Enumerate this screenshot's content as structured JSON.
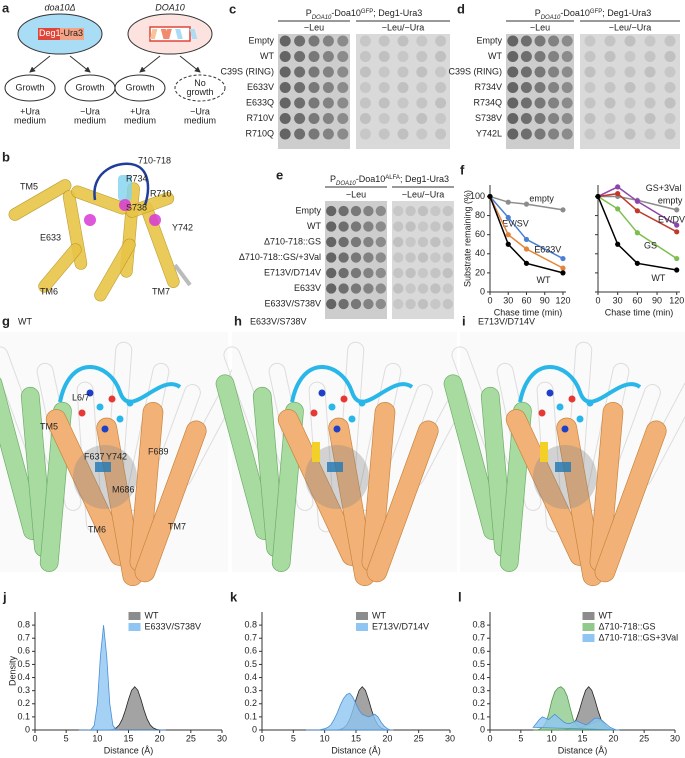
{
  "panels": {
    "a": {
      "label": "a",
      "left_title": "doa10Δ",
      "right_title": "DOA10",
      "construct": [
        "Deg1",
        "-Ura3"
      ],
      "outcomes": [
        [
          "Growth"
        ],
        [
          "Growth"
        ],
        [
          "Growth"
        ],
        [
          "No",
          "growth"
        ]
      ],
      "media": [
        [
          "+Ura",
          "medium"
        ],
        [
          "−Ura",
          "medium"
        ],
        [
          "+Ura",
          "medium"
        ],
        [
          "−Ura",
          "medium"
        ]
      ]
    },
    "b": {
      "label": "b",
      "labels": [
        "710-718",
        "R734",
        "R710",
        "S738",
        "TM5",
        "E633",
        "Y742",
        "TM6",
        "TM7"
      ]
    },
    "c": {
      "label": "c",
      "title": {
        "p": "P",
        "sub": "DOA10",
        "mid": "-Doa10",
        "sup": "GFP",
        "rest": "; Deg1-Ura3"
      },
      "columns": [
        "−Leu",
        "−Leu/−Ura"
      ],
      "rows": [
        "Empty",
        "WT",
        "C39S (RING)",
        "E633V",
        "E633Q",
        "R710V",
        "R710Q"
      ]
    },
    "d": {
      "label": "d",
      "title": {
        "p": "P",
        "sub": "DOA10",
        "mid": "-Doa10",
        "sup": "GFP",
        "rest": "; Deg1-Ura3"
      },
      "columns": [
        "−Leu",
        "−Leu/−Ura"
      ],
      "rows": [
        "Empty",
        "WT",
        "C39S (RING)",
        "R734V",
        "R734Q",
        "S738V",
        "Y742L"
      ]
    },
    "e": {
      "label": "e",
      "title": {
        "p": "P",
        "sub": "DOA10",
        "mid": "-Doa10",
        "sup": "ALFA",
        "rest": "; Deg1-Ura3"
      },
      "columns": [
        "−Leu",
        "−Leu/−Ura"
      ],
      "rows": [
        "Empty",
        "WT",
        "Δ710-718::GS",
        "Δ710-718::GS/+3Val",
        "E713V/D714V",
        "E633V",
        "E633V/S738V"
      ]
    },
    "g": {
      "label": "g",
      "title": "WT",
      "labels": [
        "L6/7",
        "TM5",
        "F637",
        "Y742",
        "F689",
        "M686",
        "TM6",
        "TM7"
      ]
    },
    "h": {
      "label": "h",
      "title": "E633V/S738V"
    },
    "i": {
      "label": "i",
      "title": "E713V/D714V"
    }
  },
  "chart_data": [
    {
      "type": "line",
      "label": "f",
      "x": [
        0,
        30,
        60,
        120
      ],
      "xlim": [
        0,
        125
      ],
      "ylim": [
        0,
        112
      ],
      "xticks": [
        0,
        30,
        60,
        90,
        120
      ],
      "yticks": [
        0,
        20,
        40,
        60,
        80,
        100
      ],
      "xlabel": "Chase time (min)",
      "ylabel": "Substrate remaining (%)",
      "series": [
        {
          "name": "empty",
          "color": "#8c8c8c",
          "values": [
            100,
            94,
            92,
            86
          ]
        },
        {
          "name": "EV/SV",
          "color": "#4a7fd4",
          "values": [
            100,
            78,
            55,
            35
          ]
        },
        {
          "name": "E633V",
          "color": "#e6843a",
          "values": [
            100,
            60,
            45,
            25
          ]
        },
        {
          "name": "WT",
          "color": "#000000",
          "values": [
            100,
            50,
            30,
            20
          ]
        }
      ]
    },
    {
      "type": "line",
      "x": [
        0,
        30,
        60,
        120
      ],
      "xlim": [
        0,
        125
      ],
      "ylim": [
        0,
        112
      ],
      "xticks": [
        0,
        30,
        60,
        90,
        120
      ],
      "yticks": [
        0,
        20,
        40,
        60,
        80,
        100
      ],
      "xlabel": "Chase time (min)",
      "series": [
        {
          "name": "empty",
          "color": "#8c8c8c",
          "values": [
            100,
            100,
            96,
            86
          ]
        },
        {
          "name": "GS+3Val",
          "color": "#8e44ad",
          "values": [
            100,
            110,
            95,
            70
          ]
        },
        {
          "name": "EV/DV",
          "color": "#c0392b",
          "values": [
            100,
            103,
            85,
            63
          ]
        },
        {
          "name": "GS",
          "color": "#7cbf4e",
          "values": [
            100,
            87,
            62,
            35
          ]
        },
        {
          "name": "WT",
          "color": "#000000",
          "values": [
            100,
            50,
            30,
            23
          ]
        }
      ]
    },
    {
      "type": "area",
      "label": "j",
      "x": [
        7,
        7.5,
        8,
        8.5,
        9,
        9.5,
        10,
        10.5,
        11,
        11.5,
        12,
        12.5,
        13,
        13.5,
        14,
        14.5,
        15,
        15.5,
        16,
        16.5,
        17,
        17.5,
        18,
        18.5,
        19,
        19.5,
        20,
        20.5,
        21
      ],
      "xlim": [
        0,
        30
      ],
      "ylim": [
        0,
        0.9
      ],
      "xticks": [
        0,
        5,
        10,
        15,
        20,
        25,
        30
      ],
      "yticks": [
        0,
        0.1,
        0.2,
        0.3,
        0.4,
        0.5,
        0.6,
        0.7,
        0.8
      ],
      "xlabel": "Distance (Å)",
      "ylabel": "Density",
      "series": [
        {
          "name": "WT",
          "color": "#8c8c8c",
          "values": [
            0,
            0,
            0,
            0,
            0,
            0,
            0,
            0,
            0,
            0,
            0.001,
            0.005,
            0.015,
            0.038,
            0.082,
            0.151,
            0.233,
            0.303,
            0.33,
            0.303,
            0.233,
            0.151,
            0.082,
            0.038,
            0.015,
            0.005,
            0.001,
            0,
            0
          ]
        },
        {
          "name": "E633V/S738V",
          "color": "#8ec5f2",
          "values": [
            0,
            0,
            0,
            0,
            0.003,
            0.035,
            0.2,
            0.566,
            0.8,
            0.566,
            0.2,
            0.035,
            0.003,
            0,
            0,
            0,
            0,
            0,
            0,
            0,
            0,
            0,
            0,
            0,
            0,
            0,
            0,
            0,
            0
          ]
        }
      ]
    },
    {
      "type": "area",
      "label": "k",
      "x": [
        7,
        7.5,
        8,
        8.5,
        9,
        9.5,
        10,
        10.5,
        11,
        11.5,
        12,
        12.5,
        13,
        13.5,
        14,
        14.5,
        15,
        15.5,
        16,
        16.5,
        17,
        17.5,
        18,
        18.5,
        19,
        19.5,
        20,
        20.5,
        21
      ],
      "xlim": [
        0,
        30
      ],
      "ylim": [
        0,
        0.9
      ],
      "xticks": [
        0,
        5,
        10,
        15,
        20,
        25,
        30
      ],
      "yticks": [
        0,
        0.1,
        0.2,
        0.3,
        0.4,
        0.5,
        0.6,
        0.7,
        0.8
      ],
      "xlabel": "Distance (Å)",
      "series": [
        {
          "name": "WT",
          "color": "#8c8c8c",
          "values": [
            0,
            0,
            0,
            0,
            0,
            0,
            0,
            0,
            0,
            0,
            0.001,
            0.005,
            0.015,
            0.038,
            0.082,
            0.151,
            0.233,
            0.303,
            0.33,
            0.303,
            0.233,
            0.151,
            0.082,
            0.038,
            0.015,
            0.005,
            0.001,
            0,
            0
          ]
        },
        {
          "name": "E713V/D714V",
          "color": "#8ec5f2",
          "values": [
            0,
            0,
            0,
            0,
            0,
            0.005,
            0.01,
            0.02,
            0.04,
            0.08,
            0.13,
            0.19,
            0.24,
            0.27,
            0.28,
            0.25,
            0.2,
            0.15,
            0.12,
            0.11,
            0.1,
            0.11,
            0.12,
            0.1,
            0.06,
            0.03,
            0.01,
            0,
            0
          ]
        }
      ]
    },
    {
      "type": "area",
      "label": "l",
      "x": [
        7,
        7.5,
        8,
        8.5,
        9,
        9.5,
        10,
        10.5,
        11,
        11.5,
        12,
        12.5,
        13,
        13.5,
        14,
        14.5,
        15,
        15.5,
        16,
        16.5,
        17,
        17.5,
        18,
        18.5,
        19,
        19.5,
        20,
        20.5,
        21
      ],
      "xlim": [
        0,
        30
      ],
      "ylim": [
        0,
        0.9
      ],
      "xticks": [
        0,
        5,
        10,
        15,
        20,
        25,
        30
      ],
      "yticks": [
        0,
        0.1,
        0.2,
        0.3,
        0.4,
        0.5,
        0.6,
        0.7,
        0.8
      ],
      "xlabel": "Distance (Å)",
      "series": [
        {
          "name": "WT",
          "color": "#8c8c8c",
          "values": [
            0,
            0,
            0,
            0,
            0,
            0,
            0,
            0,
            0,
            0,
            0.001,
            0.005,
            0.015,
            0.038,
            0.082,
            0.151,
            0.233,
            0.303,
            0.33,
            0.303,
            0.233,
            0.151,
            0.082,
            0.038,
            0.015,
            0.005,
            0.001,
            0,
            0
          ]
        },
        {
          "name": "Δ710-718::GS",
          "color": "#8fca8c",
          "values": [
            0,
            0,
            0.005,
            0.02,
            0.05,
            0.12,
            0.22,
            0.29,
            0.32,
            0.33,
            0.31,
            0.26,
            0.17,
            0.08,
            0.04,
            0.02,
            0.02,
            0.03,
            0.04,
            0.05,
            0.06,
            0.07,
            0.07,
            0.05,
            0.02,
            0.01,
            0,
            0,
            0
          ]
        },
        {
          "name": "Δ710-718::GS+3Val",
          "color": "#8ec5f2",
          "values": [
            0.02,
            0.05,
            0.08,
            0.1,
            0.09,
            0.08,
            0.1,
            0.12,
            0.1,
            0.08,
            0.06,
            0.05,
            0.05,
            0.06,
            0.07,
            0.06,
            0.05,
            0.04,
            0.05,
            0.07,
            0.09,
            0.09,
            0.08,
            0.06,
            0.04,
            0.02,
            0.01,
            0,
            0
          ]
        }
      ]
    }
  ]
}
